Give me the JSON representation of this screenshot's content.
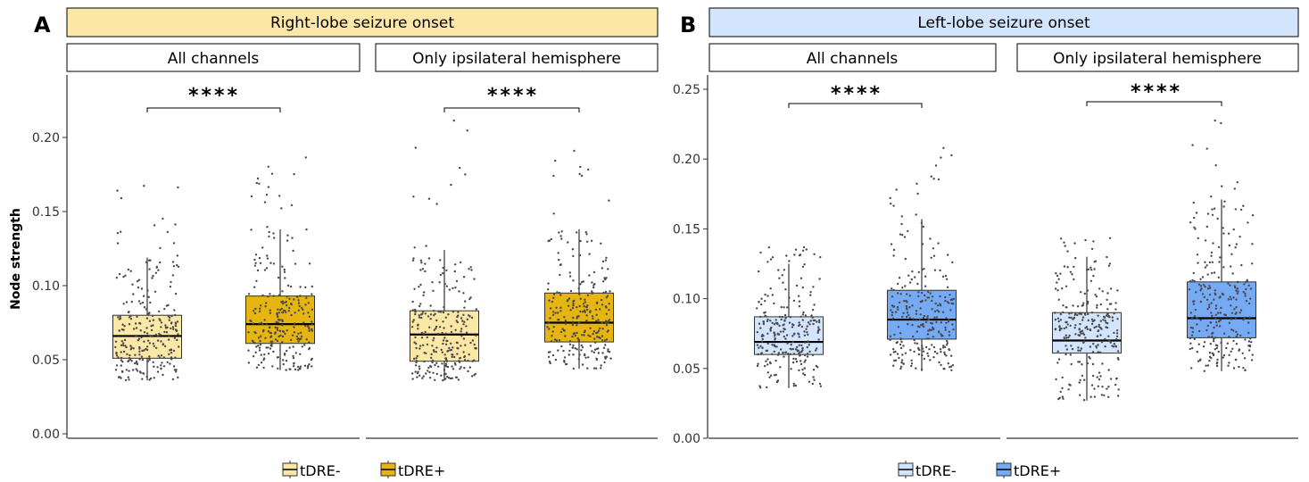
{
  "colors": {
    "right_minus": "#fbe7a6",
    "right_plus": "#e6b511",
    "right_title_bg": "#fbe7a6",
    "left_minus": "#d3e4fd",
    "left_plus": "#77aaf5",
    "left_title_bg": "#d3e4fd"
  },
  "panels": [
    {
      "letter": "A",
      "title": "Right-lobe seizure onset",
      "facets": [
        "All channels",
        "Only ipsilateral hemisphere"
      ],
      "significance": [
        "****",
        "****"
      ],
      "legend": [
        "tDRE-",
        "tDRE+"
      ]
    },
    {
      "letter": "B",
      "title": "Left-lobe seizure onset",
      "facets": [
        "All channels",
        "Only ipsilateral hemisphere"
      ],
      "significance": [
        "****",
        "****"
      ],
      "legend": [
        "tDRE-",
        "tDRE+"
      ]
    }
  ],
  "chart_data": [
    {
      "type": "box",
      "title": "Right-lobe seizure onset",
      "ylabel": "Node strength",
      "ylim": [
        0,
        0.23
      ],
      "yticks": [
        "0.00",
        "0.05",
        "0.10",
        "0.15",
        "0.20"
      ],
      "facets": [
        "All channels",
        "Only ipsilateral hemisphere"
      ],
      "groups": [
        "tDRE-",
        "tDRE+"
      ],
      "series": [
        {
          "facet": "All channels",
          "group": "tDRE-",
          "whisker_low": 0.036,
          "q1": 0.051,
          "median": 0.066,
          "q3": 0.08,
          "whisker_high": 0.119,
          "point_max": 0.17
        },
        {
          "facet": "All channels",
          "group": "tDRE+",
          "whisker_low": 0.043,
          "q1": 0.061,
          "median": 0.074,
          "q3": 0.093,
          "whisker_high": 0.138,
          "point_max": 0.188
        },
        {
          "facet": "Only ipsilateral hemisphere",
          "group": "tDRE-",
          "whisker_low": 0.036,
          "q1": 0.049,
          "median": 0.067,
          "q3": 0.083,
          "whisker_high": 0.124,
          "point_max": 0.214
        },
        {
          "facet": "Only ipsilateral hemisphere",
          "group": "tDRE+",
          "whisker_low": 0.044,
          "q1": 0.062,
          "median": 0.075,
          "q3": 0.095,
          "whisker_high": 0.138,
          "point_max": 0.205
        }
      ]
    },
    {
      "type": "box",
      "title": "Left-lobe seizure onset",
      "ylabel": "",
      "ylim": [
        0,
        0.25
      ],
      "yticks": [
        "0.00",
        "0.05",
        "0.10",
        "0.15",
        "0.20",
        "0.25"
      ],
      "facets": [
        "All channels",
        "Only ipsilateral hemisphere"
      ],
      "groups": [
        "tDRE-",
        "tDRE+"
      ],
      "series": [
        {
          "facet": "All channels",
          "group": "tDRE-",
          "whisker_low": 0.036,
          "q1": 0.06,
          "median": 0.069,
          "q3": 0.087,
          "whisker_high": 0.125,
          "point_max": 0.137
        },
        {
          "facet": "All channels",
          "group": "tDRE+",
          "whisker_low": 0.048,
          "q1": 0.071,
          "median": 0.085,
          "q3": 0.106,
          "whisker_high": 0.157,
          "point_max": 0.209
        },
        {
          "facet": "Only ipsilateral hemisphere",
          "group": "tDRE-",
          "whisker_low": 0.027,
          "q1": 0.061,
          "median": 0.07,
          "q3": 0.09,
          "whisker_high": 0.13,
          "point_max": 0.146
        },
        {
          "facet": "Only ipsilateral hemisphere",
          "group": "tDRE+",
          "whisker_low": 0.048,
          "q1": 0.072,
          "median": 0.086,
          "q3": 0.112,
          "whisker_high": 0.171,
          "point_max": 0.229
        }
      ]
    }
  ]
}
